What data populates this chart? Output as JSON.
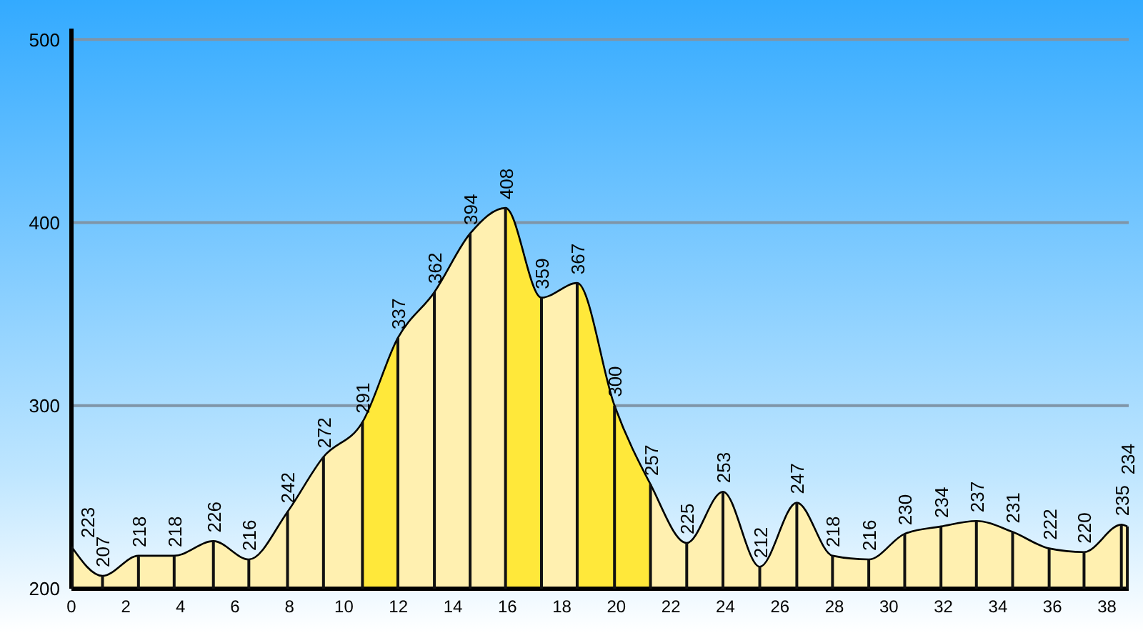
{
  "chart_data": {
    "type": "area",
    "x": [
      0,
      1.14,
      2.46,
      3.77,
      5.21,
      6.51,
      7.93,
      9.25,
      10.68,
      11.98,
      13.32,
      14.63,
      15.93,
      17.25,
      18.56,
      19.93,
      21.25,
      22.58,
      23.91,
      25.26,
      26.62,
      27.93,
      29.26,
      30.58,
      31.91,
      33.21,
      34.54,
      35.88,
      37.16,
      38.53,
      38.75
    ],
    "values": [
      223,
      207,
      218,
      218,
      226,
      216,
      242,
      272,
      291,
      337,
      362,
      394,
      408,
      359,
      367,
      300,
      257,
      225,
      253,
      212,
      247,
      218,
      216,
      230,
      234,
      237,
      231,
      222,
      220,
      235,
      234
    ],
    "colors": [
      "#fff0b0",
      "#fff0b0",
      "#fff0b0",
      "#fff0b0",
      "#fff0b0",
      "#fff0b0",
      "#fff0b0",
      "#fff0b0",
      "#ffe83a",
      "#fff0b0",
      "#fff0b0",
      "#fff0b0",
      "#ffe83a",
      "#fff0b0",
      "#ffe83a",
      "#ffe83a",
      "#fff0b0",
      "#fff0b0",
      "#fff0b0",
      "#fff0b0",
      "#fff0b0",
      "#fff0b0",
      "#fff0b0",
      "#fff0b0",
      "#fff0b0",
      "#fff0b0",
      "#fff0b0",
      "#fff0b0",
      "#fff0b0",
      "#fff0b0",
      "#fff0b0"
    ],
    "xlim": [
      0,
      38.8
    ],
    "xticks": [
      0,
      2,
      4,
      6,
      8,
      10,
      12,
      14,
      16,
      18,
      20,
      22,
      24,
      26,
      28,
      30,
      32,
      34,
      36,
      38
    ],
    "ylim": [
      200,
      506
    ],
    "yticks": [
      200,
      300,
      400,
      500
    ],
    "grid": "y",
    "data_labels": true
  }
}
